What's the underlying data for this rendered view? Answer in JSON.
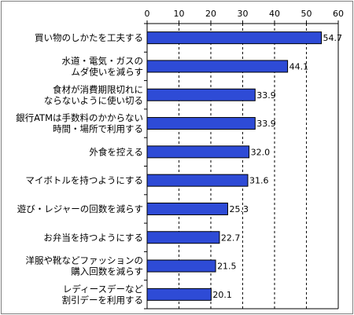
{
  "chart_data": {
    "type": "bar",
    "orientation": "horizontal",
    "title": "",
    "xlabel": "",
    "ylabel": "",
    "xlim": [
      0,
      60
    ],
    "x_ticks": [
      "0",
      "10",
      "20",
      "30",
      "40",
      "50",
      "60"
    ],
    "x_tick_values": [
      0,
      10,
      20,
      30,
      40,
      50,
      60
    ],
    "x_axis_position": "top",
    "grid": "vertical dashed",
    "legend": "none",
    "bar_color": "#2e4bd6",
    "bar_edge_color": "#000000",
    "categories": [
      [
        "買い物のしかたを工夫する"
      ],
      [
        "水道・電気・ガスの",
        "ムダ使いを減らす"
      ],
      [
        "食材が消費期限切れに",
        "ならないように使い切る"
      ],
      [
        "銀行ATMは手数料のかからない",
        "時間・場所で利用する"
      ],
      [
        "外食を控える"
      ],
      [
        "マイボトルを持つようにする"
      ],
      [
        "遊び・レジャーの回数を減らす"
      ],
      [
        "お弁当を持つようにする"
      ],
      [
        "洋服や靴などファッションの",
        "購入回数を減らす"
      ],
      [
        "レディースデーなど",
        "割引デーを利用する"
      ]
    ],
    "values": [
      54.7,
      44.1,
      33.9,
      33.9,
      32.0,
      31.6,
      25.3,
      22.7,
      21.5,
      20.1
    ],
    "value_labels": [
      "54.7",
      "44.1",
      "33.9",
      "33.9",
      "32.0",
      "31.6",
      "25.3",
      "22.7",
      "21.5",
      "20.1"
    ]
  }
}
